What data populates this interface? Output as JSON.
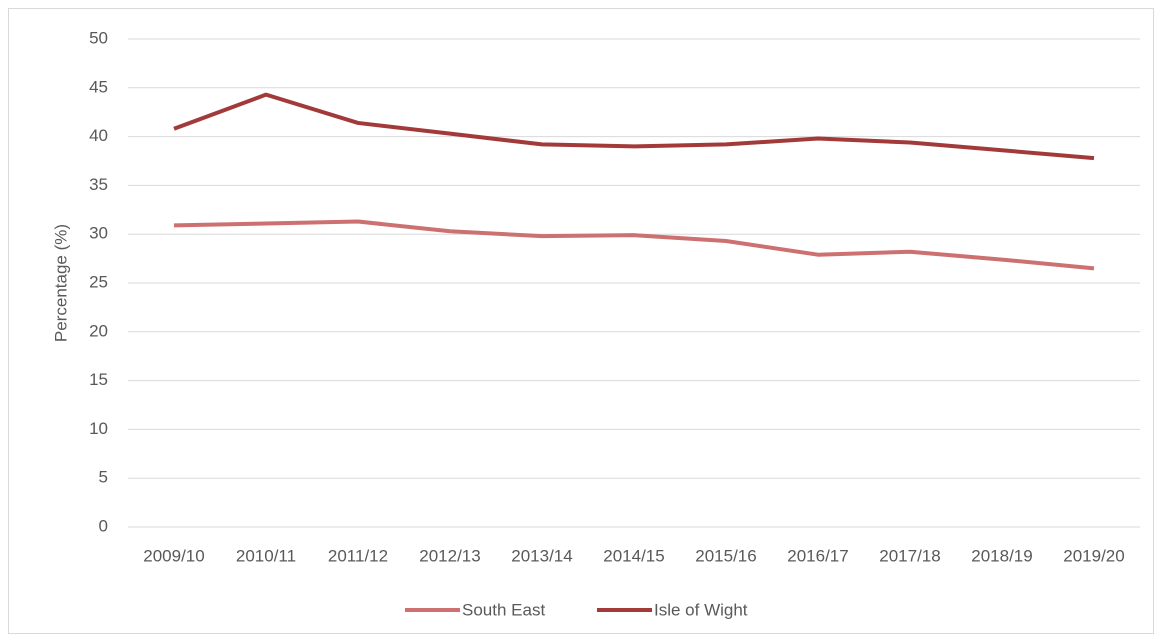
{
  "chart_data": {
    "type": "line",
    "y_label": "Percentage (%)",
    "categories": [
      "2009/10",
      "2010/11",
      "2011/12",
      "2012/13",
      "2013/14",
      "2014/15",
      "2015/16",
      "2016/17",
      "2017/18",
      "2018/19",
      "2019/20"
    ],
    "series": [
      {
        "name": "South East",
        "color": "#cd7070",
        "values": [
          30.9,
          31.1,
          31.3,
          30.3,
          29.8,
          29.9,
          29.3,
          27.9,
          28.2,
          27.4,
          26.5
        ]
      },
      {
        "name": "Isle of Wight",
        "color": "#a33a3a",
        "values": [
          40.8,
          44.3,
          41.4,
          40.3,
          39.2,
          39.0,
          39.2,
          39.8,
          39.4,
          38.6,
          37.8
        ]
      }
    ],
    "ylim": [
      0,
      50
    ],
    "yticks": [
      0,
      5,
      10,
      15,
      20,
      25,
      30,
      35,
      40,
      45,
      50
    ],
    "grid": true,
    "legend": "bottom"
  }
}
